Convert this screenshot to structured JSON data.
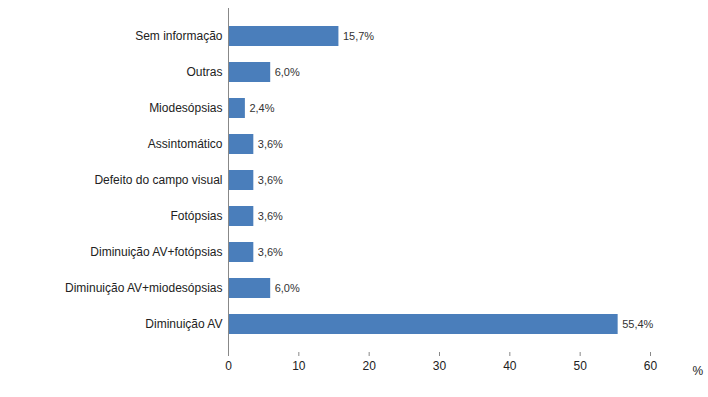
{
  "chart_data": {
    "type": "bar",
    "orientation": "horizontal",
    "x_label": "%",
    "categories": [
      "Sem informação",
      "Outras",
      "Miodesópsias",
      "Assintomático",
      "Defeito do campo visual",
      "Fotópsias",
      "Diminuição AV+fotópsias",
      "Diminuição AV+miodesópsias",
      "Diminuição AV"
    ],
    "values": [
      15.7,
      6.0,
      2.4,
      3.6,
      3.6,
      3.6,
      3.6,
      6.0,
      55.4
    ],
    "value_labels": [
      "15,7%",
      "6,0%",
      "2,4%",
      "3,6%",
      "3,6%",
      "3,6%",
      "3,6%",
      "6,0%",
      "55,4%"
    ],
    "color": "#4a7ebb",
    "xlim": [
      0,
      60
    ],
    "xticks": [
      0,
      10,
      20,
      30,
      40,
      50,
      60
    ],
    "grid": false,
    "data_labels": true
  }
}
